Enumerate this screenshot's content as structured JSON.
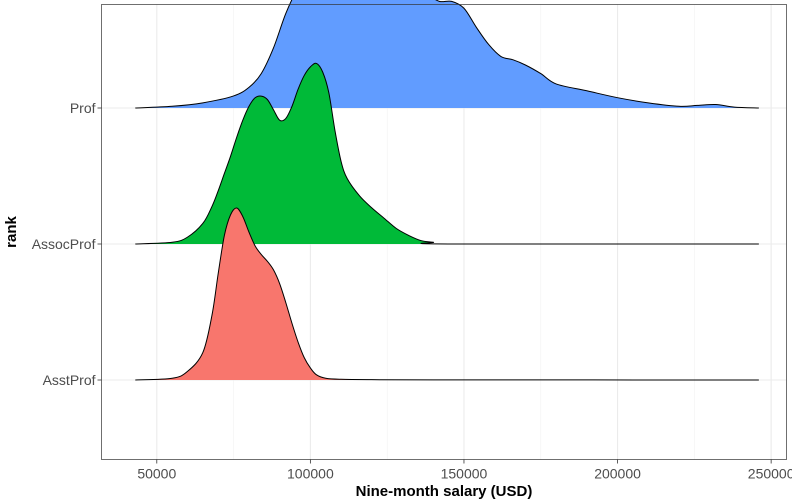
{
  "chart_data": {
    "type": "ridgeline",
    "xlabel": "Nine-month salary (USD)",
    "ylabel": "rank",
    "xlim": [
      32000,
      255000
    ],
    "x_ticks": [
      50000,
      100000,
      150000,
      200000,
      250000
    ],
    "x_tick_labels": [
      "50000",
      "100000",
      "150000",
      "200000",
      "250000"
    ],
    "grid": true,
    "categories": [
      "AsstProf",
      "AssocProf",
      "Prof"
    ],
    "series": [
      {
        "name": "AsstProf",
        "color": "#F8766D",
        "x": [
          43000,
          55000,
          60000,
          65000,
          68000,
          70000,
          72000,
          74000,
          76000,
          78000,
          80000,
          82000,
          84000,
          86000,
          88000,
          90000,
          92000,
          94000,
          96000,
          98000,
          100000,
          102000,
          105000,
          110000,
          120000,
          140000,
          246000
        ],
        "density": [
          0,
          0.01,
          0.05,
          0.16,
          0.38,
          0.62,
          0.84,
          0.96,
          1.0,
          0.95,
          0.86,
          0.78,
          0.73,
          0.69,
          0.64,
          0.56,
          0.45,
          0.33,
          0.22,
          0.13,
          0.07,
          0.03,
          0.01,
          0.004,
          0.002,
          0.001,
          0
        ]
      },
      {
        "name": "AssocProf",
        "color": "#00BA38",
        "x": [
          43000,
          55000,
          60000,
          65000,
          68000,
          70000,
          72000,
          74000,
          76000,
          78000,
          80000,
          82000,
          84000,
          86000,
          88000,
          90000,
          92000,
          94000,
          96000,
          98000,
          100000,
          102000,
          104000,
          106000,
          108000,
          110000,
          112000,
          116000,
          120000,
          124000,
          128000,
          132000,
          136000,
          140000,
          145000,
          246000
        ],
        "density": [
          0,
          0.01,
          0.04,
          0.12,
          0.22,
          0.31,
          0.41,
          0.51,
          0.62,
          0.72,
          0.8,
          0.85,
          0.86,
          0.84,
          0.78,
          0.72,
          0.73,
          0.8,
          0.9,
          0.98,
          1.03,
          1.05,
          1.0,
          0.88,
          0.66,
          0.48,
          0.38,
          0.28,
          0.21,
          0.15,
          0.09,
          0.05,
          0.02,
          0.01,
          0,
          0
        ]
      },
      {
        "name": "Prof",
        "color": "#619CFF",
        "x": [
          43000,
          55000,
          65000,
          75000,
          80000,
          84000,
          88000,
          92000,
          96000,
          100000,
          104000,
          106000,
          108000,
          110000,
          114000,
          118000,
          122000,
          126000,
          130000,
          134000,
          138000,
          142000,
          146000,
          150000,
          154000,
          158000,
          162000,
          166000,
          170000,
          175000,
          180000,
          190000,
          200000,
          210000,
          220000,
          226000,
          232000,
          238000,
          246000
        ],
        "density": [
          0,
          0.01,
          0.03,
          0.07,
          0.12,
          0.2,
          0.35,
          0.55,
          0.7,
          0.81,
          0.9,
          0.93,
          0.93,
          0.9,
          0.83,
          0.78,
          0.77,
          0.75,
          0.73,
          0.7,
          0.66,
          0.62,
          0.62,
          0.58,
          0.47,
          0.37,
          0.3,
          0.28,
          0.25,
          0.2,
          0.14,
          0.1,
          0.06,
          0.03,
          0.01,
          0.015,
          0.02,
          0.005,
          0
        ]
      }
    ]
  }
}
